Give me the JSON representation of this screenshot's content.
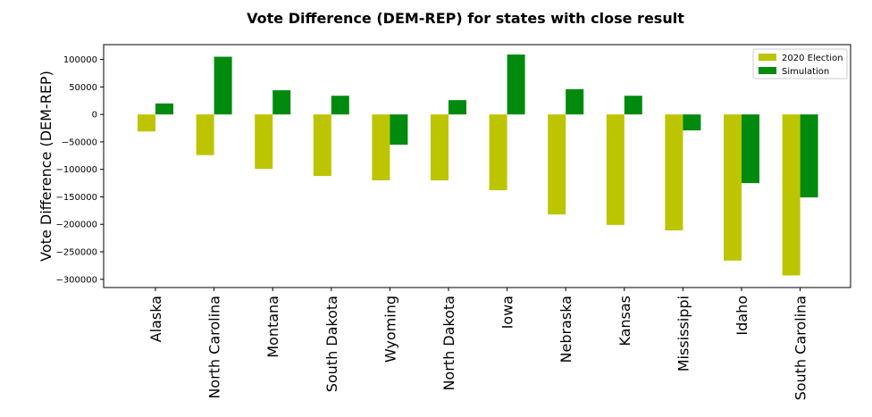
{
  "chart_data": {
    "type": "bar",
    "title": "Vote Difference (DEM-REP) for states with close result",
    "xlabel": "",
    "ylabel": "Vote Difference (DEM-REP)",
    "ylim": [
      -315000,
      127000
    ],
    "yticks": [
      100000,
      50000,
      0,
      -50000,
      -100000,
      -150000,
      -200000,
      -250000,
      -300000
    ],
    "categories": [
      "Alaska",
      "North Carolina",
      "Montana",
      "South Dakota",
      "Wyoming",
      "North Dakota",
      "Iowa",
      "Nebraska",
      "Kansas",
      "Mississippi",
      "Idaho",
      "South Carolina"
    ],
    "series": [
      {
        "name": "2020 Election",
        "color": "#bcc500",
        "values": [
          -31000,
          -74000,
          -99000,
          -112000,
          -120000,
          -120000,
          -138000,
          -182000,
          -201000,
          -211000,
          -266000,
          -293000
        ]
      },
      {
        "name": "Simulation",
        "color": "#008a0e",
        "values": [
          20000,
          105000,
          44000,
          34000,
          -55000,
          26000,
          109000,
          46000,
          34000,
          -29000,
          -125000,
          -151000
        ]
      }
    ],
    "legend_position": "top-right",
    "grid": false
  }
}
